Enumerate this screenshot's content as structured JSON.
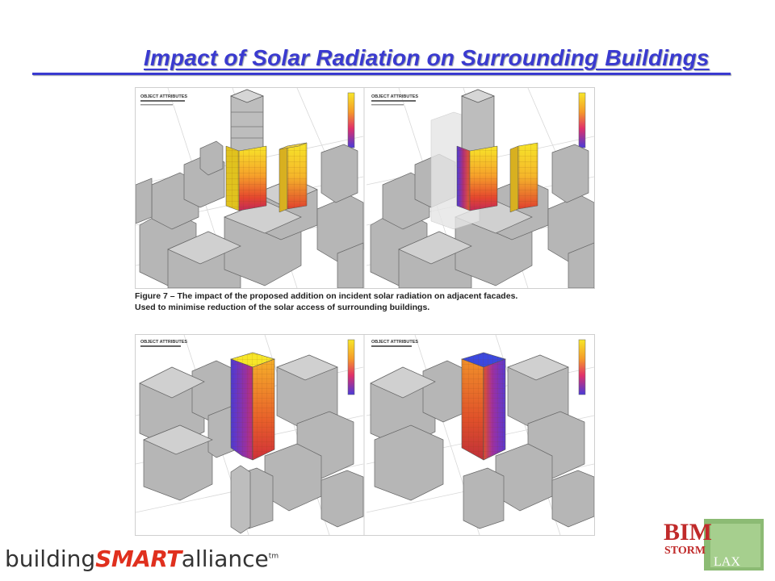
{
  "slide": {
    "title": "Impact of Solar Radiation on Surrounding Buildings"
  },
  "figure_caption": {
    "line1": "Figure 7 – The impact of the proposed addition on incident solar radiation on adjacent facades.",
    "line2": "Used to minimise reduction of the solar access of surrounding buildings."
  },
  "panels": [
    {
      "header": "OBJECT ATTRIBUTES"
    },
    {
      "header": "OBJECT ATTRIBUTES"
    },
    {
      "header": "OBJECT ATTRIBUTES"
    },
    {
      "header": "OBJECT ATTRIBUTES"
    }
  ],
  "footer": {
    "logo_part1": "building",
    "logo_part2": "SMART",
    "logo_part3": "alliance",
    "logo_tm": "tm",
    "bim_line1": "BIM",
    "bim_line2": "STORM",
    "bim_line3": "LAX"
  },
  "colors": {
    "title": "#3a3ad0",
    "hot": "#f5e02a",
    "mid": "#e8502a",
    "cool": "#3a3ae0",
    "building_gray": "#b4b4b4",
    "logo_red": "#e0301e",
    "bim_green": "#7fb06a"
  }
}
